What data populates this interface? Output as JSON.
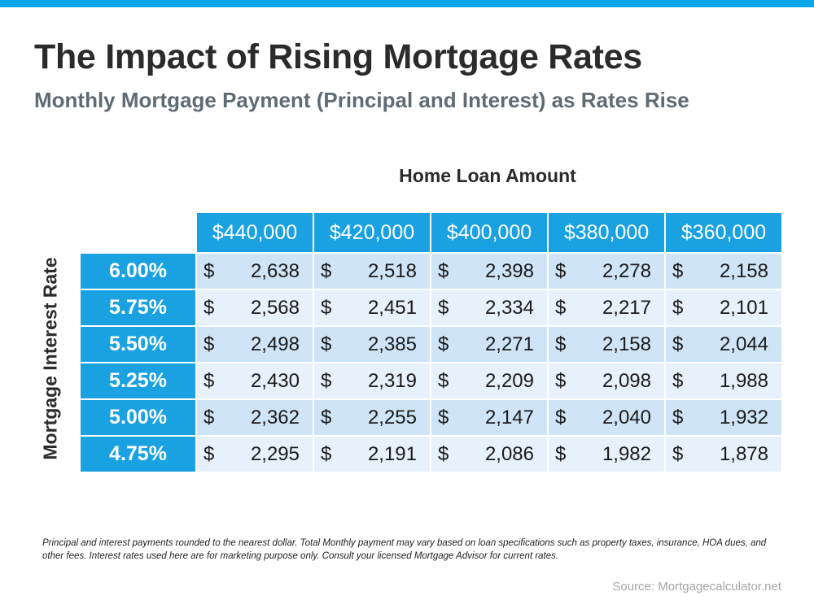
{
  "title": "The Impact of Rising Mortgage Rates",
  "subtitle": "Monthly Mortgage Payment (Principal and Interest) as Rates Rise",
  "colors": {
    "accent": "#1aa1e2",
    "top_bar": "#0ea5e9",
    "row_dark": "#cfe4f7",
    "row_light": "#e6f1fb",
    "title": "#2b2b2b",
    "subtitle": "#5f6b73"
  },
  "chart_data": {
    "type": "table",
    "column_group_label": "Home Loan Amount",
    "row_group_label": "Mortgage Interest Rate",
    "columns": [
      "$440,000",
      "$420,000",
      "$400,000",
      "$380,000",
      "$360,000"
    ],
    "currency_symbol": "$",
    "rows": [
      {
        "rate": "6.00%",
        "values": [
          "2,638",
          "2,518",
          "2,398",
          "2,278",
          "2,158"
        ]
      },
      {
        "rate": "5.75%",
        "values": [
          "2,568",
          "2,451",
          "2,334",
          "2,217",
          "2,101"
        ]
      },
      {
        "rate": "5.50%",
        "values": [
          "2,498",
          "2,385",
          "2,271",
          "2,158",
          "2,044"
        ]
      },
      {
        "rate": "5.25%",
        "values": [
          "2,430",
          "2,319",
          "2,209",
          "2,098",
          "1,988"
        ]
      },
      {
        "rate": "5.00%",
        "values": [
          "2,362",
          "2,255",
          "2,147",
          "2,040",
          "1,932"
        ]
      },
      {
        "rate": "4.75%",
        "values": [
          "2,295",
          "2,191",
          "2,086",
          "1,982",
          "1,878"
        ]
      }
    ]
  },
  "footnote": "Principal and interest payments rounded to the nearest dollar. Total Monthly payment may vary based on loan specifications such as property taxes, insurance, HOA dues, and other fees. Interest rates used here are for marketing purpose only. Consult your licensed Mortgage Advisor for current rates.",
  "source": "Source: Mortgagecalculator.net"
}
